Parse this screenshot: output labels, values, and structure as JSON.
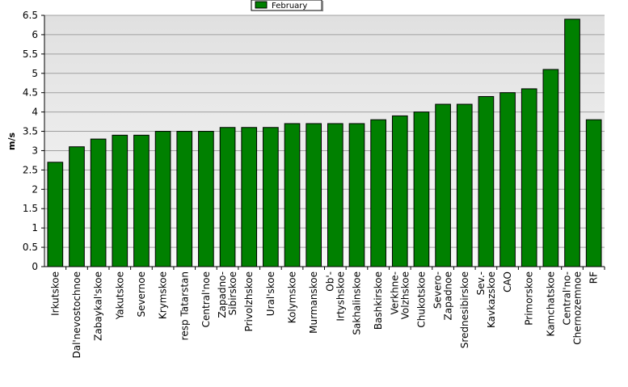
{
  "chart_data": {
    "type": "bar",
    "ylabel": "m/s",
    "categories": [
      "Irkutskoe",
      "Dal'nevostochnoe",
      "Zabaykal'skoe",
      "Yakutskoe",
      "Severnoe",
      "Krymskoe",
      "resp Tatarstan",
      "Central'noe",
      "Zapadno-\nSibirskoe",
      "Privolzhskoe",
      "Ural'skoe",
      "Kolymskoe",
      "Murmanskoe",
      "Ob'-\nIrtyshskoe",
      "Sakhalinskoe",
      "Bashkirskoe",
      "Verkhne-\nVolzhskoe",
      "Chukotskoe",
      "Severo-\nZapadnoe",
      "Srednesibirskoe",
      "Sev.-\nKavkazskoe",
      "CAO",
      "Primorskoe",
      "Kamchatskoe",
      "Central'no-\nChernozemnoe",
      "RF"
    ],
    "series": [
      {
        "name": "February",
        "color": "#008000",
        "values": [
          2.7,
          3.1,
          3.3,
          3.4,
          3.4,
          3.5,
          3.5,
          3.5,
          3.6,
          3.6,
          3.6,
          3.7,
          3.7,
          3.7,
          3.7,
          3.8,
          3.9,
          4.0,
          4.2,
          4.2,
          4.4,
          4.5,
          4.6,
          5.1,
          6.4,
          3.8
        ]
      }
    ],
    "ylim": [
      0,
      6.5
    ],
    "yticks": [
      0,
      0.5,
      1,
      1.5,
      2,
      2.5,
      3,
      3.5,
      4,
      4.5,
      5,
      5.5,
      6,
      6.5
    ],
    "grid": true,
    "legend": "top"
  }
}
